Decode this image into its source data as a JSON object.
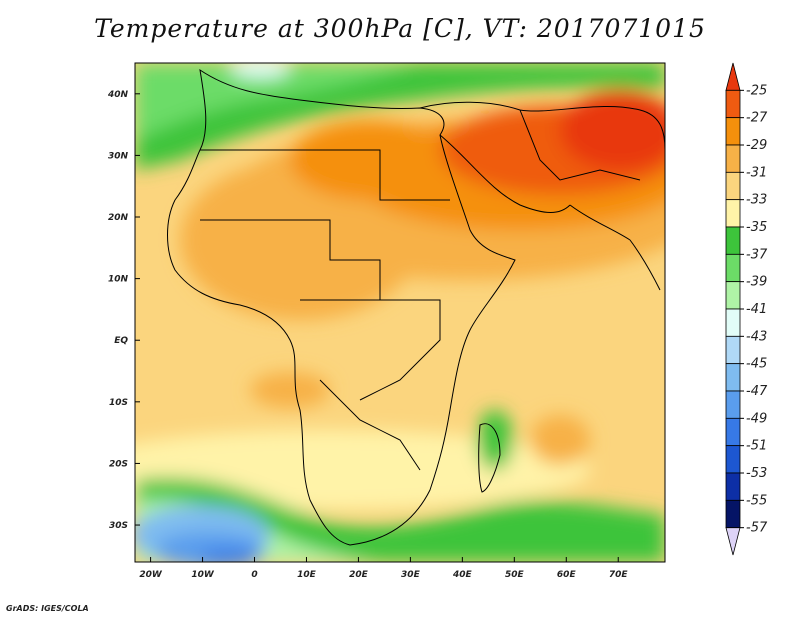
{
  "title": "Temperature at 300hPa [C], VT: 2017071015",
  "footer": "GrADS: IGES/COLA",
  "map": {
    "region": "Africa and Middle East",
    "lon_range": [
      -23,
      79
    ],
    "lat_range": [
      -36,
      45
    ],
    "x_ticks": [
      {
        "lon": -20,
        "label": "20W"
      },
      {
        "lon": -10,
        "label": "10W"
      },
      {
        "lon": 0,
        "label": "0"
      },
      {
        "lon": 10,
        "label": "10E"
      },
      {
        "lon": 20,
        "label": "20E"
      },
      {
        "lon": 30,
        "label": "30E"
      },
      {
        "lon": 40,
        "label": "40E"
      },
      {
        "lon": 50,
        "label": "50E"
      },
      {
        "lon": 60,
        "label": "60E"
      },
      {
        "lon": 70,
        "label": "70E"
      }
    ],
    "y_ticks": [
      {
        "lat": 40,
        "label": "40N"
      },
      {
        "lat": 30,
        "label": "30N"
      },
      {
        "lat": 20,
        "label": "20N"
      },
      {
        "lat": 10,
        "label": "10N"
      },
      {
        "lat": 0,
        "label": "EQ"
      },
      {
        "lat": -10,
        "label": "10S"
      },
      {
        "lat": -20,
        "label": "20S"
      },
      {
        "lat": -30,
        "label": "30S"
      }
    ]
  },
  "colorbar": {
    "labels": [
      "-25",
      "-27",
      "-29",
      "-31",
      "-33",
      "-35",
      "-37",
      "-39",
      "-41",
      "-43",
      "-45",
      "-47",
      "-49",
      "-51",
      "-53",
      "-55",
      "-57"
    ],
    "colors": [
      "#e8380f",
      "#ef5b11",
      "#f5900c",
      "#f7b147",
      "#fbd57e",
      "#fff3a8",
      "#3dc43b",
      "#6cdc67",
      "#aff3a6",
      "#e2fdf8",
      "#b0d9f7",
      "#7fbcf0",
      "#5a9ded",
      "#3779e6",
      "#1d57d1",
      "#0d2fa6",
      "#051466",
      "#ddd3f7"
    ]
  }
}
